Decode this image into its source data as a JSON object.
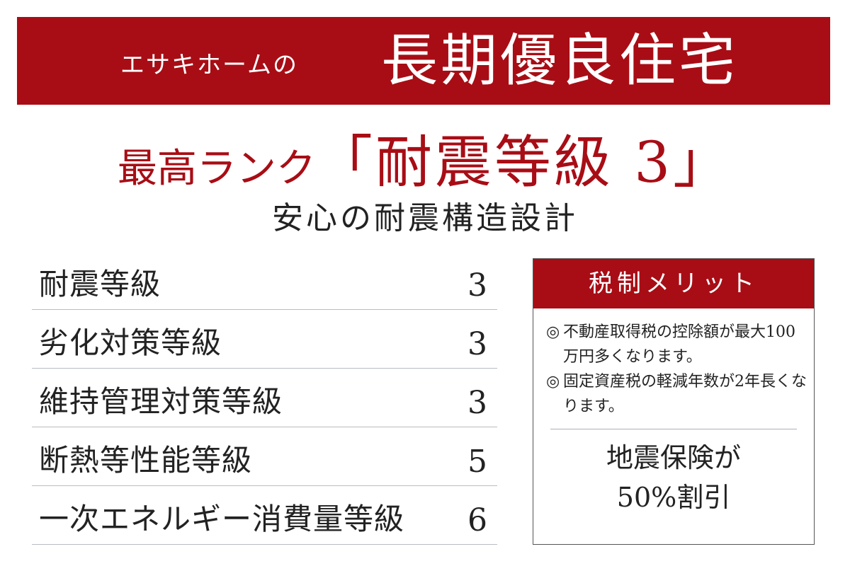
{
  "banner": {
    "company": "エサキホームの",
    "title": "長期優良住宅"
  },
  "headline": {
    "prefix": "最高ランク",
    "main": "「耐震等級 3」"
  },
  "subheadline": "安心の耐震構造設計",
  "grades": [
    {
      "label": "耐震等級",
      "value": "3"
    },
    {
      "label": "劣化対策等級",
      "value": "3"
    },
    {
      "label": "維持管理対策等級",
      "value": "3"
    },
    {
      "label": "断熱等性能等級",
      "value": "5"
    },
    {
      "label": "一次エネルギー消費量等級",
      "value": "6"
    }
  ],
  "tax_box": {
    "title": "税制メリット",
    "bullet_mark": "◎",
    "items": [
      "不動産取得税の控除額が最大100万円多くなります。",
      "固定資産税の軽減年数が2年長くなります。"
    ],
    "highlight_line1": "地震保険が",
    "highlight_line2": "50%割引"
  },
  "colors": {
    "brand_red": "#a80d15",
    "text": "#222222",
    "divider": "#b8bcc2"
  }
}
